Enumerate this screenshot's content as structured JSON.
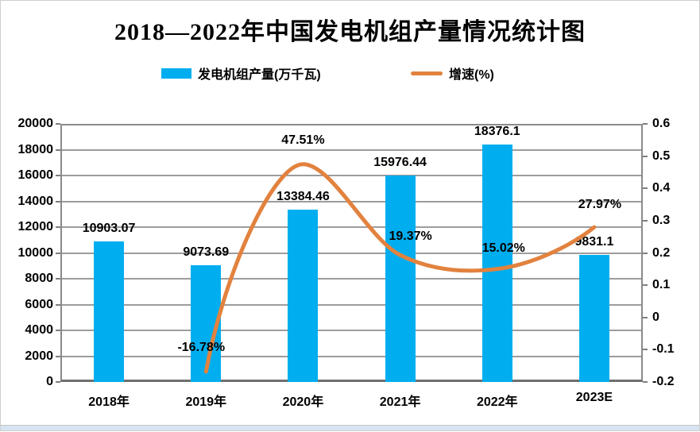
{
  "title": "2018—2022年中国发电机组产量情况统计图",
  "legend": [
    {
      "label": "发电机组产量(万千瓦)",
      "type": "bar",
      "color": "#00AEEF"
    },
    {
      "label": "增速(%)",
      "type": "line",
      "color": "#E2823E"
    }
  ],
  "chart_data": {
    "type": "bar+line",
    "title": "2018—2022年中国发电机组产量情况统计图",
    "categories": [
      "2018年",
      "2019年",
      "2020年",
      "2021年",
      "2022年",
      "2023E"
    ],
    "series": [
      {
        "name": "发电机组产量(万千瓦)",
        "type": "bar",
        "axis": "left",
        "color": "#00AEEF",
        "values": [
          10903.07,
          9073.69,
          13384.46,
          15976.44,
          18376.1,
          9831.1
        ],
        "labels": [
          "10903.07",
          "9073.69",
          "13384.46",
          "15976.44",
          "18376.1",
          "9831.1"
        ]
      },
      {
        "name": "增速(%)",
        "type": "line",
        "axis": "right",
        "color": "#E2823E",
        "values": [
          null,
          -0.1678,
          0.4751,
          0.1937,
          0.1502,
          0.2797
        ],
        "labels": [
          "",
          "-16.78%",
          "47.51%",
          "19.37%",
          "15.02%",
          "27.97%"
        ]
      }
    ],
    "left_axis": {
      "min": 0,
      "max": 20000,
      "step": 2000,
      "ticks": [
        "20000",
        "18000",
        "16000",
        "14000",
        "12000",
        "10000",
        "8000",
        "6000",
        "4000",
        "2000",
        "0"
      ]
    },
    "right_axis": {
      "min": -0.2,
      "max": 0.6,
      "step": 0.1,
      "ticks": [
        "0.6",
        "0.5",
        "0.4",
        "0.3",
        "0.2",
        "0.1",
        "0",
        "-0.1",
        "-0.2"
      ]
    },
    "grid": true,
    "legend_position": "top",
    "grid_color": "#9c9c9c",
    "axis_text_color": "#000000"
  }
}
